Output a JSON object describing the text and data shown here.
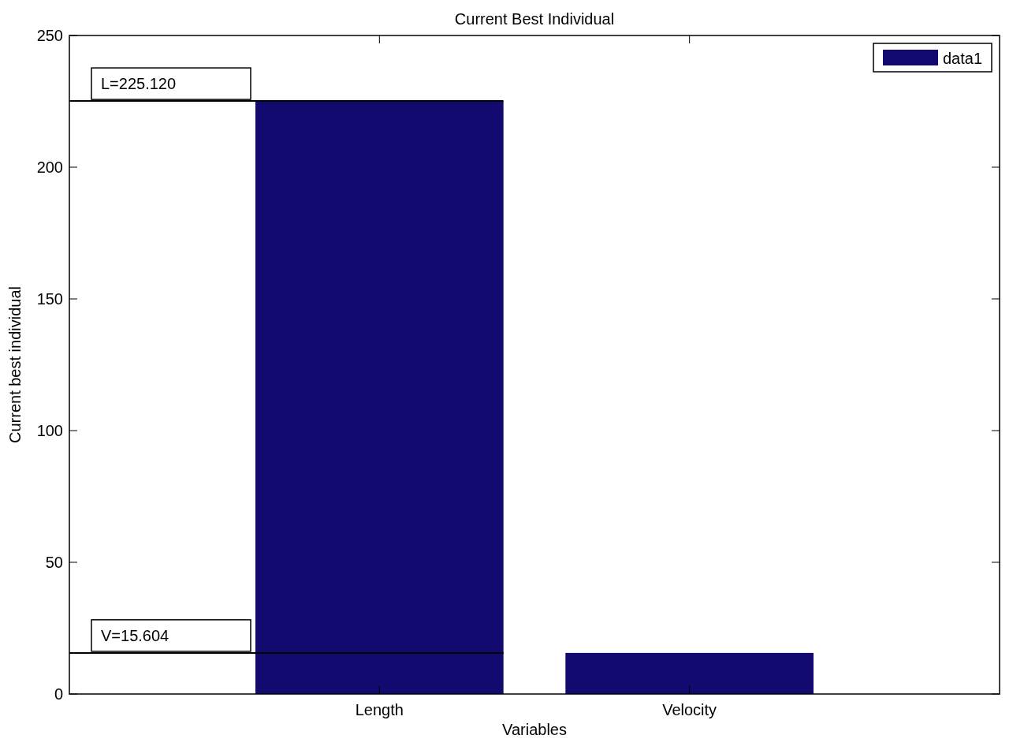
{
  "chart_data": {
    "type": "bar",
    "title": "Current Best Individual",
    "xlabel": "Variables",
    "ylabel": "Current best individual",
    "categories": [
      "Length",
      "Velocity"
    ],
    "series": [
      {
        "name": "data1",
        "color": "#120a6e",
        "values": [
          225.12,
          15.604
        ]
      }
    ],
    "ylim": [
      0,
      250
    ],
    "yticks": [
      0,
      50,
      100,
      150,
      200,
      250
    ],
    "ref_lines": [
      {
        "axis": "y",
        "value": 225.12,
        "label": "L=225.120",
        "color": "#000000"
      },
      {
        "axis": "y",
        "value": 15.604,
        "label": "V=15.604",
        "color": "#000000"
      }
    ],
    "legend": "top right",
    "grid": false
  }
}
